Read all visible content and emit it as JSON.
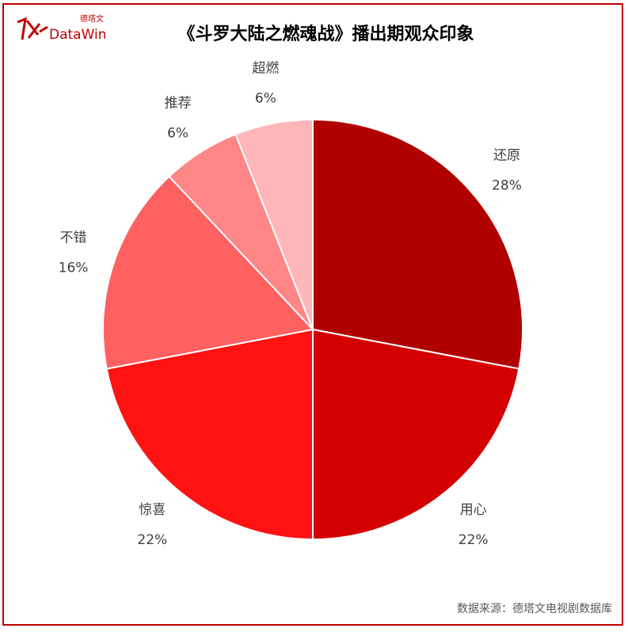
{
  "logo": {
    "cn": "德塔文",
    "en": "DataWin"
  },
  "chart_data": {
    "type": "pie",
    "title": "《斗罗大陆之燃魂战》播出期观众印象",
    "start": "top",
    "direction": "clockwise",
    "slices": [
      {
        "label": "还原",
        "value": 28,
        "display": "28%",
        "color": "#b00000"
      },
      {
        "label": "用心",
        "value": 22,
        "display": "22%",
        "color": "#d40000"
      },
      {
        "label": "惊喜",
        "value": 22,
        "display": "22%",
        "color": "#ff1212"
      },
      {
        "label": "不错",
        "value": 16,
        "display": "16%",
        "color": "#ff6060"
      },
      {
        "label": "推荐",
        "value": 6,
        "display": "6%",
        "color": "#ff8686"
      },
      {
        "label": "超燃",
        "value": 6,
        "display": "6%",
        "color": "#ffb6b8"
      }
    ]
  },
  "footer": {
    "source": "数据来源：德塔文电视剧数据库"
  }
}
